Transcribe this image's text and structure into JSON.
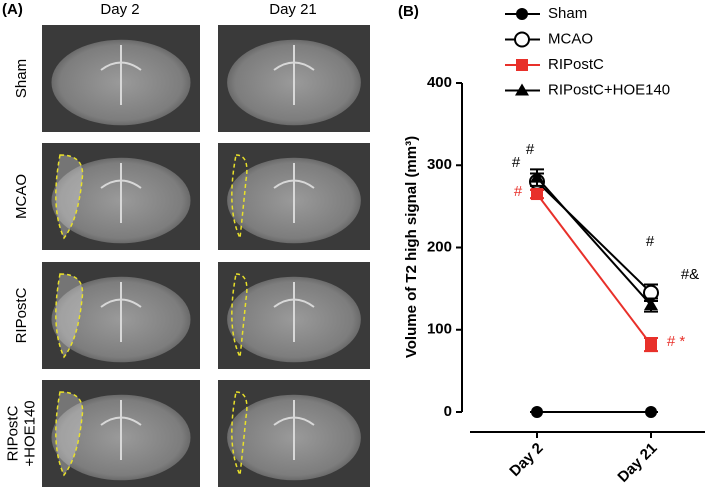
{
  "panel_a": {
    "label": "(A)",
    "columns": [
      "Day 2",
      "Day 21"
    ],
    "rows": [
      [
        "Sham"
      ],
      [
        "MCAO"
      ],
      [
        "RIPostC"
      ],
      [
        "RIPostC",
        "+HOE140"
      ]
    ]
  },
  "chart_data": {
    "type": "line",
    "panel_label": "(B)",
    "y_label": "Volume of T2 high signal (mm³)",
    "categories": [
      "Day 2",
      "Day 21"
    ],
    "ylim": [
      0,
      400
    ],
    "yticks": [
      0,
      100,
      200,
      300,
      400
    ],
    "series": [
      {
        "name": "Sham",
        "color": "#000000",
        "marker": "circle",
        "values": [
          0,
          0
        ],
        "errors": [
          0,
          0
        ]
      },
      {
        "name": "MCAO",
        "color": "#000000",
        "marker": "open-circle",
        "values": [
          280,
          145
        ],
        "errors": [
          10,
          10
        ]
      },
      {
        "name": "RIPostC",
        "color": "#e8302a",
        "marker": "square",
        "values": [
          265,
          82
        ],
        "errors": [
          5,
          8
        ]
      },
      {
        "name": "RIPostC+HOE140",
        "color": "#000000",
        "marker": "triangle",
        "values": [
          285,
          130
        ],
        "errors": [
          10,
          8
        ]
      }
    ],
    "annotations": [
      {
        "text": "#",
        "color": "#000000"
      },
      {
        "text": "#",
        "color": "#000000"
      },
      {
        "text": "#",
        "color": "#e8302a"
      },
      {
        "text": "#",
        "color": "#000000"
      },
      {
        "text": "#&",
        "color": "#000000"
      },
      {
        "text": "# *",
        "color": "#e8302a"
      }
    ]
  }
}
